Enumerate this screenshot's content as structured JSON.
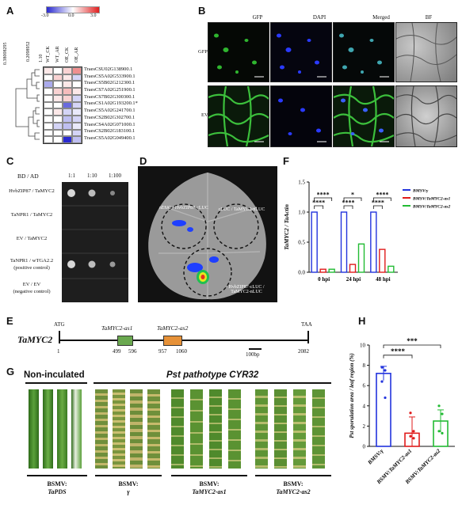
{
  "panels": {
    "A": "A",
    "B": "B",
    "C": "C",
    "D": "D",
    "E": "E",
    "F": "F",
    "G": "G",
    "H": "H"
  },
  "panelA": {
    "scale_ticks": [
      "-3.0",
      "0.0",
      "3.0"
    ],
    "dendro_values": [
      "0.38008295",
      "0.2098952"
    ],
    "columns": [
      "WT_CK",
      "WT_AR",
      "OE_CK",
      "OE_AR"
    ],
    "col_prefix": "1.10",
    "genes": [
      "TraesCSU02G138900.1",
      "TraesCS5A02G533900.1",
      "TraesCS5B02G212300.1",
      "TraesCS7A02G251900.1",
      "TraesCS7B02G300300.1",
      "TraesCS1A02G193200.1*",
      "TraesCS5A02G241700.1",
      "TraesCS2B02G302700.1",
      "TraesCS4A02G071000.1",
      "TraesCS2B02G183100.1",
      "TraesCS5A02G049400.1"
    ],
    "heat": [
      [
        0.1,
        0.0,
        0.2,
        0.5
      ],
      [
        0.0,
        0.2,
        0.1,
        -0.2
      ],
      [
        -0.4,
        0.0,
        0.1,
        0.0
      ],
      [
        0.0,
        0.2,
        0.3,
        0.1
      ],
      [
        0.0,
        0.1,
        0.2,
        -0.2
      ],
      [
        0.0,
        0.0,
        -0.7,
        -0.2
      ],
      [
        0.0,
        0.1,
        -0.2,
        -0.1
      ],
      [
        0.0,
        0.0,
        -0.3,
        -0.2
      ],
      [
        0.0,
        -0.2,
        -0.3,
        -0.1
      ],
      [
        0.0,
        0.0,
        0.0,
        -0.2
      ],
      [
        0.0,
        0.0,
        -1.0,
        -0.3
      ]
    ]
  },
  "panelB": {
    "columns": [
      "GFP",
      "DAPI",
      "Merged",
      "BF"
    ],
    "rows": [
      "GFP-TaMYC2",
      "EV-GFP"
    ]
  },
  "panelC": {
    "header": "BD / AD",
    "dilutions": [
      "1:1",
      "1:10",
      "1:100"
    ],
    "rows": [
      "HvbZIP87 / TaMYC2",
      "TaNPR1 / TaMYC2",
      "EV / TaMYC2",
      "TaNPR1 / wTGA2.2",
      "(positive control)",
      "EV / EV",
      "(negative control)"
    ]
  },
  "panelD": {
    "labels": [
      "nLUC / HvbZIP87-cLUC",
      "cLUC / TaMYC2-nLUC",
      "HvbZIP87-cLUC / TaMYC2-nLUC"
    ]
  },
  "panelE": {
    "gene": "TaMYC2",
    "start": "ATG",
    "stop": "TAA",
    "as1": "TaMYC2-as1",
    "as2": "TaMYC2-as2",
    "positions": [
      "1",
      "499",
      "596",
      "957",
      "1060",
      "2082"
    ],
    "scale": "100bp"
  },
  "chart_data": [
    {
      "panel": "F",
      "type": "bar",
      "categories": [
        "0 hpi",
        "24 hpi",
        "48 hpi"
      ],
      "ylabel": "TaMYC2 / TaActin",
      "ylim": [
        0,
        1.5
      ],
      "yticks": [
        "0.0",
        "0.5",
        "1.0",
        "1.5"
      ],
      "series": [
        {
          "name": "BMSV:γ",
          "color": "#2233dd",
          "values": [
            1.0,
            1.0,
            1.0
          ]
        },
        {
          "name": "BMSV:TaMYC2-as1",
          "color": "#e01b1b",
          "values": [
            0.05,
            0.13,
            0.38
          ]
        },
        {
          "name": "BMSV:TaMYC2-as2",
          "color": "#22bb33",
          "values": [
            0.05,
            0.47,
            0.1
          ]
        }
      ],
      "significance": [
        "****",
        "****",
        "****",
        "*",
        "****",
        "****"
      ]
    },
    {
      "panel": "H",
      "type": "bar",
      "categories": [
        "BMSV:γ",
        "BSMV:TaMYC2-as1",
        "BSMV:TaMYC2-as2"
      ],
      "ylabel": "Pst sporulation area / leaf region (%)",
      "ylim": [
        0,
        10
      ],
      "yticks": [
        "0",
        "2",
        "4",
        "6",
        "8",
        "10"
      ],
      "colors": [
        "#2233dd",
        "#e01b1b",
        "#22bb33"
      ],
      "values": [
        7.2,
        1.3,
        2.5
      ],
      "errors": [
        0.7,
        1.6,
        1.1
      ],
      "points": [
        [
          7.8,
          7.5,
          6.4,
          4.8
        ],
        [
          3.3,
          1.5,
          1.0,
          0.8
        ],
        [
          4.0,
          3.2,
          1.5,
          1.3
        ]
      ],
      "significance": [
        "****",
        "***"
      ]
    }
  ],
  "panelG": {
    "left_title": "Non-inculated",
    "right_title": "Pst pathotype CYR32",
    "groups": [
      {
        "line1": "BSMV:",
        "line2": "TaPDS"
      },
      {
        "line1": "BSMV:",
        "line2": "γ"
      },
      {
        "line1": "BSMV:",
        "line2": "TaMYC2-as1"
      },
      {
        "line1": "BSMV:",
        "line2": "TaMYC2-as2"
      }
    ]
  },
  "colors": {
    "heat_blue": "#2a2ad0",
    "heat_red": "#e02020",
    "leaf_green": "#3e7a22",
    "leaf_yellow": "#b8b46a"
  }
}
